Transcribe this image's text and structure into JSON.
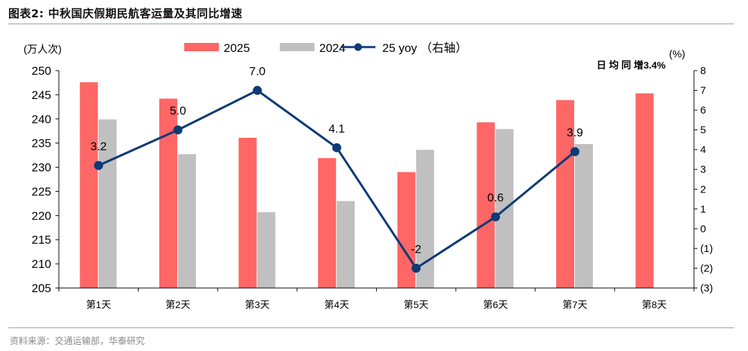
{
  "figure": {
    "title": "图表2:   中秋国庆假期民航客运量及其同比增速",
    "source": "资料来源：交通运输部，华泰研究"
  },
  "chart_data": {
    "type": "bar",
    "categories": [
      "第1天",
      "第2天",
      "第3天",
      "第4天",
      "第5天",
      "第6天",
      "第7天",
      "第8天"
    ],
    "series": [
      {
        "name": "2025",
        "kind": "bar",
        "axis": "left",
        "color": "#ff6666",
        "values": [
          247.6,
          244.2,
          236.1,
          231.9,
          229.0,
          239.3,
          243.9,
          245.3
        ]
      },
      {
        "name": "2024",
        "kind": "bar",
        "axis": "left",
        "color": "#c0c0c0",
        "values": [
          239.9,
          232.7,
          220.7,
          223.0,
          233.6,
          237.9,
          234.8,
          null
        ]
      },
      {
        "name": "25 yoy （右轴）",
        "kind": "line",
        "axis": "right",
        "color": "#0e3a78",
        "values": [
          3.2,
          5.0,
          7.0,
          4.1,
          -2,
          0.6,
          3.9,
          null
        ],
        "labels": [
          "3.2",
          "5.0",
          "7.0",
          "4.1",
          "-2",
          "0.6",
          "3.9",
          ""
        ]
      }
    ],
    "left_axis": {
      "label": "(万人次)",
      "min": 205,
      "max": 250,
      "step": 5,
      "ticks": [
        "205",
        "210",
        "215",
        "220",
        "225",
        "230",
        "235",
        "240",
        "245",
        "250"
      ]
    },
    "right_axis": {
      "label": "(%)",
      "min": -3,
      "max": 8,
      "step": 1,
      "ticks": [
        "(3)",
        "(2)",
        "(1)",
        "0",
        "1",
        "2",
        "3",
        "4",
        "5",
        "6",
        "7",
        "8"
      ]
    },
    "annotation": "日 均 同 增3.4%",
    "legend_position": "top-center",
    "grid": false
  }
}
